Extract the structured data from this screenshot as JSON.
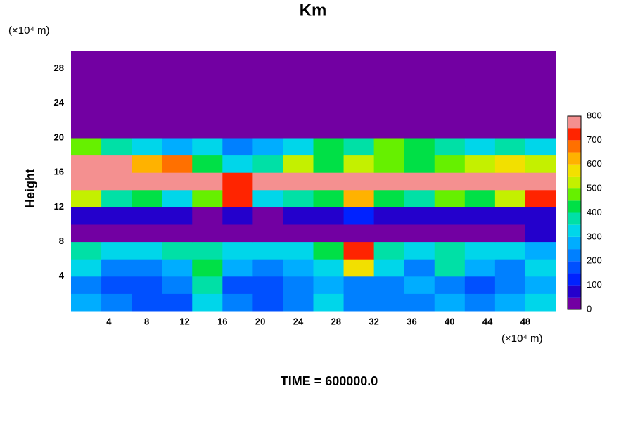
{
  "chart_data": {
    "type": "heatmap",
    "title": "Km",
    "ylabel": "Height",
    "y_unit": "(×10⁴ m)",
    "x_unit": "(×10⁴ m)",
    "footer": "TIME = 600000.0",
    "xlim": [
      0,
      51.2
    ],
    "ylim": [
      0,
      30
    ],
    "xticks": [
      4,
      8,
      12,
      16,
      20,
      24,
      28,
      32,
      36,
      40,
      44,
      48
    ],
    "yticks": [
      4,
      8,
      12,
      16,
      20,
      24,
      28
    ],
    "levels": [
      0,
      50,
      100,
      150,
      200,
      250,
      300,
      350,
      400,
      450,
      500,
      550,
      600,
      650,
      700,
      750,
      800
    ],
    "colors": [
      "#7200a2",
      "#2400cc",
      "#0022ff",
      "#0050ff",
      "#0080ff",
      "#00adff",
      "#00d6ea",
      "#00e0a6",
      "#00e046",
      "#66f000",
      "#c4f000",
      "#f2e000",
      "#ffb200",
      "#ff7000",
      "#ff2400",
      "#f49090"
    ],
    "colorbar_ticks": [
      0,
      100,
      200,
      300,
      400,
      500,
      600,
      700,
      800
    ],
    "z": [
      [
        250,
        200,
        180,
        180,
        300,
        200,
        180,
        230,
        300,
        220,
        200,
        220,
        250,
        200,
        250,
        300
      ],
      [
        230,
        150,
        150,
        200,
        350,
        180,
        160,
        220,
        250,
        230,
        200,
        250,
        200,
        160,
        200,
        250
      ],
      [
        300,
        200,
        220,
        250,
        400,
        250,
        200,
        250,
        300,
        550,
        300,
        200,
        350,
        250,
        220,
        300
      ],
      [
        350,
        300,
        320,
        380,
        350,
        300,
        300,
        320,
        400,
        700,
        350,
        300,
        350,
        300,
        320,
        280
      ],
      [
        0,
        0,
        0,
        0,
        0,
        0,
        0,
        0,
        0,
        0,
        0,
        0,
        0,
        0,
        0,
        50
      ],
      [
        80,
        60,
        50,
        60,
        40,
        50,
        30,
        50,
        80,
        100,
        80,
        60,
        70,
        50,
        80,
        60
      ],
      [
        500,
        350,
        400,
        300,
        450,
        700,
        300,
        350,
        400,
        600,
        400,
        350,
        450,
        400,
        500,
        700
      ],
      [
        800,
        800,
        800,
        800,
        800,
        700,
        750,
        800,
        800,
        800,
        800,
        800,
        800,
        800,
        800,
        800
      ],
      [
        800,
        750,
        600,
        650,
        400,
        300,
        350,
        500,
        400,
        500,
        450,
        400,
        450,
        500,
        550,
        500
      ],
      [
        450,
        350,
        300,
        250,
        300,
        200,
        250,
        300,
        400,
        350,
        450,
        400,
        350,
        300,
        350,
        300
      ],
      [
        0,
        0,
        0,
        0,
        0,
        0,
        0,
        0,
        0,
        0,
        0,
        0,
        0,
        0,
        0,
        0
      ],
      [
        0,
        0,
        0,
        0,
        0,
        0,
        0,
        0,
        0,
        0,
        0,
        0,
        0,
        0,
        0,
        0
      ],
      [
        0,
        0,
        0,
        0,
        0,
        0,
        0,
        0,
        0,
        0,
        0,
        0,
        0,
        0,
        0,
        0
      ],
      [
        0,
        0,
        0,
        0,
        0,
        0,
        0,
        0,
        0,
        0,
        0,
        0,
        0,
        0,
        0,
        0
      ],
      [
        0,
        0,
        0,
        0,
        0,
        0,
        0,
        0,
        0,
        0,
        0,
        0,
        0,
        0,
        0,
        0
      ]
    ]
  }
}
